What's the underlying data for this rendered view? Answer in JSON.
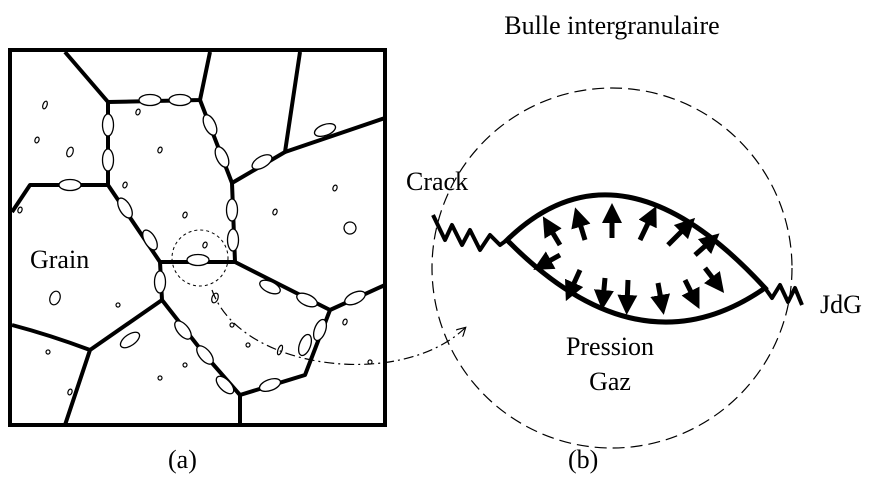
{
  "panel_a": {
    "label": "(a)",
    "grain_label": "Grain"
  },
  "panel_b": {
    "title": "Bulle intergranulaire",
    "label": "(b)",
    "crack_label": "Crack",
    "boundary_label": "JdG",
    "pressure_label": "Pression",
    "gas_label": "Gaz"
  }
}
